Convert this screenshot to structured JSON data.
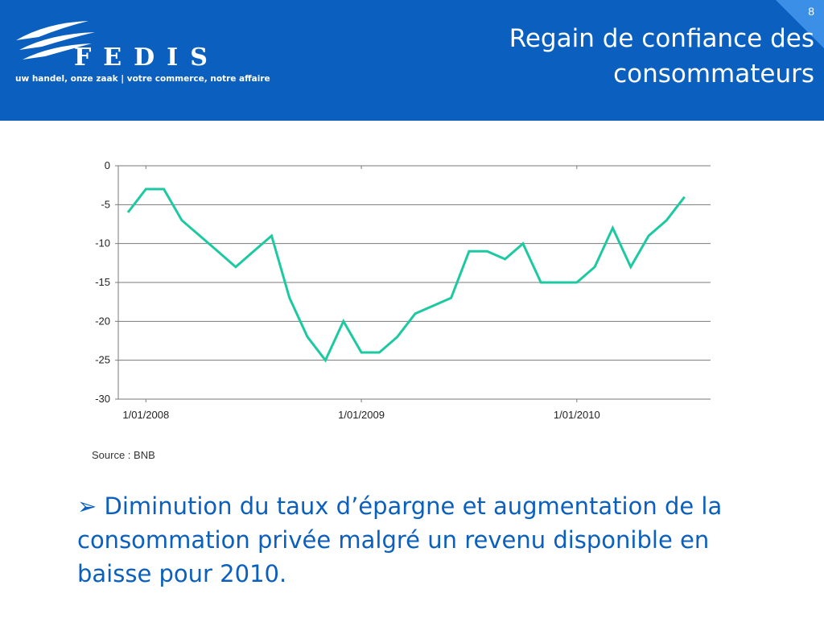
{
  "header": {
    "slide_number": "8",
    "title": "Regain de confiance des consommateurs",
    "logo_text": "FEDIS",
    "tagline": "uw handel, onze zaak  |  votre commerce, notre affaire"
  },
  "colors": {
    "header_bg": "#0a5fbf",
    "line": "#1dc9a0",
    "text_blue": "#0a5fbf"
  },
  "chart_data": {
    "type": "line",
    "title": "",
    "xlabel": "",
    "ylabel": "",
    "ylim": [
      -30,
      0
    ],
    "yticks": [
      0,
      -5,
      -10,
      -15,
      -20,
      -25,
      -30
    ],
    "x_tick_labels": [
      "1/01/2008",
      "1/01/2009",
      "1/01/2010"
    ],
    "x_tick_dates": [
      "2008-01-01",
      "2009-01-01",
      "2010-01-01"
    ],
    "grid": true,
    "legend": "none",
    "series": [
      {
        "dates": [
          "2007-12",
          "2008-01",
          "2008-02",
          "2008-03",
          "2008-04",
          "2008-05",
          "2008-06",
          "2008-07",
          "2008-08",
          "2008-09",
          "2008-10",
          "2008-11",
          "2008-12",
          "2009-01",
          "2009-02",
          "2009-03",
          "2009-04",
          "2009-05",
          "2009-06",
          "2009-07",
          "2009-08",
          "2009-09",
          "2009-10",
          "2009-11",
          "2009-12",
          "2010-01",
          "2010-02",
          "2010-03",
          "2010-04",
          "2010-05",
          "2010-06",
          "2010-07",
          "2010-08"
        ],
        "values": [
          -6,
          -3,
          -3,
          -7,
          -9,
          -11,
          -13,
          -11,
          -9,
          -17,
          -22,
          -25,
          -20,
          -24,
          -24,
          -22,
          -19,
          -18,
          -17,
          -11,
          -11,
          -12,
          -10,
          -15,
          -15,
          -15,
          -13,
          -8,
          -13,
          -9,
          -7,
          -4,
          null
        ]
      }
    ]
  },
  "source": "Source : BNB",
  "bullet": {
    "arrow": "➢",
    "text": "Diminution du taux d’épargne et augmentation de la consommation privée malgré un revenu disponible en baisse pour 2010."
  }
}
